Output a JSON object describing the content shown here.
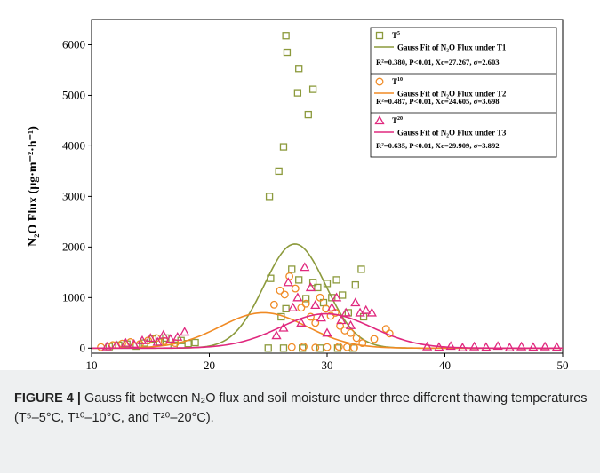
{
  "chart_data": {
    "type": "scatter",
    "xlabel": "Soil Moisture (%)",
    "ylabel": "N₂O Flux (µg·m⁻²·h⁻¹)",
    "xlim": [
      10,
      50
    ],
    "ylim": [
      -100,
      6500
    ],
    "xticks": [
      10,
      20,
      30,
      40,
      50
    ],
    "yticks": [
      0,
      1000,
      2000,
      3000,
      4000,
      5000,
      6000
    ],
    "colors": {
      "T5": "#8c9a3c",
      "T10": "#f08a24",
      "T20": "#e0287e"
    },
    "legend_placement": "top-right",
    "series": [
      {
        "name": "T5",
        "marker": "square",
        "fit_label": "Gauss  Fit of N₂O Flux under T1",
        "fit_stats": "R²=0.380,  P<0.01,  Xc=27.267,  σ=2.603",
        "fit": {
          "y0": 0,
          "xc": 27.267,
          "w": 5.206,
          "A": 13450
        },
        "points": [
          [
            11.5,
            30
          ],
          [
            12.3,
            60
          ],
          [
            13.0,
            80
          ],
          [
            13.8,
            40
          ],
          [
            14.5,
            100
          ],
          [
            15.2,
            180
          ],
          [
            15.8,
            120
          ],
          [
            16.3,
            200
          ],
          [
            17.0,
            60
          ],
          [
            17.6,
            150
          ],
          [
            18.2,
            90
          ],
          [
            18.8,
            110
          ],
          [
            25.1,
            3000
          ],
          [
            25.9,
            3500
          ],
          [
            26.3,
            3980
          ],
          [
            26.5,
            6180
          ],
          [
            26.6,
            5850
          ],
          [
            27.6,
            5530
          ],
          [
            27.5,
            5050
          ],
          [
            28.4,
            4620
          ],
          [
            28.8,
            5120
          ],
          [
            25.2,
            1380
          ],
          [
            26.1,
            620
          ],
          [
            26.5,
            780
          ],
          [
            27.0,
            1560
          ],
          [
            27.6,
            1350
          ],
          [
            28.2,
            980
          ],
          [
            28.8,
            1300
          ],
          [
            29.2,
            1200
          ],
          [
            29.7,
            900
          ],
          [
            30.0,
            1280
          ],
          [
            30.4,
            1000
          ],
          [
            30.8,
            1350
          ],
          [
            31.3,
            1050
          ],
          [
            31.8,
            700
          ],
          [
            32.4,
            1250
          ],
          [
            32.9,
            1560
          ],
          [
            33.1,
            620
          ],
          [
            26.3,
            0
          ],
          [
            27.9,
            0
          ],
          [
            29.4,
            0
          ],
          [
            30.9,
            0
          ],
          [
            32.2,
            0
          ],
          [
            25.0,
            0
          ]
        ]
      },
      {
        "name": "T10",
        "marker": "circle",
        "fit_label": "Gauss  Fit of N₂O Flux under T2",
        "fit_stats": "R²=0.487,  P<0.01,  Xc=24.605,  σ=3.698",
        "fit": {
          "y0": 0,
          "xc": 24.605,
          "w": 7.396,
          "A": 6490
        },
        "points": [
          [
            10.8,
            20
          ],
          [
            11.8,
            60
          ],
          [
            12.6,
            90
          ],
          [
            13.3,
            120
          ],
          [
            14.1,
            80
          ],
          [
            14.8,
            150
          ],
          [
            15.5,
            200
          ],
          [
            16.2,
            140
          ],
          [
            17.1,
            100
          ],
          [
            25.5,
            860
          ],
          [
            26.0,
            1140
          ],
          [
            26.4,
            1060
          ],
          [
            26.8,
            1420
          ],
          [
            27.3,
            1180
          ],
          [
            27.8,
            800
          ],
          [
            28.2,
            880
          ],
          [
            28.6,
            620
          ],
          [
            29.0,
            500
          ],
          [
            29.4,
            1000
          ],
          [
            29.9,
            780
          ],
          [
            30.3,
            640
          ],
          [
            30.7,
            700
          ],
          [
            31.1,
            440
          ],
          [
            31.5,
            350
          ],
          [
            32.0,
            300
          ],
          [
            32.5,
            200
          ],
          [
            33.0,
            100
          ],
          [
            34.0,
            180
          ],
          [
            35.0,
            380
          ],
          [
            35.3,
            290
          ],
          [
            27.0,
            20
          ],
          [
            28.0,
            30
          ],
          [
            29.0,
            10
          ],
          [
            30.0,
            20
          ],
          [
            31.0,
            30
          ],
          [
            31.7,
            20
          ],
          [
            32.3,
            10
          ]
        ]
      },
      {
        "name": "T20",
        "marker": "triangle",
        "fit_label": "Gauss  Fit of N₂O Flux under T3",
        "fit_stats": "R²=0.635,  P<0.01,  Xc=29.909,  σ=3.892",
        "fit": {
          "y0": 0,
          "xc": 29.909,
          "w": 7.784,
          "A": 6630
        },
        "points": [
          [
            11.3,
            30
          ],
          [
            12.1,
            60
          ],
          [
            12.9,
            100
          ],
          [
            13.6,
            80
          ],
          [
            14.3,
            150
          ],
          [
            15.0,
            200
          ],
          [
            15.6,
            120
          ],
          [
            16.1,
            260
          ],
          [
            16.7,
            180
          ],
          [
            17.3,
            220
          ],
          [
            17.9,
            320
          ],
          [
            25.7,
            250
          ],
          [
            26.3,
            400
          ],
          [
            26.7,
            1300
          ],
          [
            27.1,
            800
          ],
          [
            27.5,
            1000
          ],
          [
            27.8,
            500
          ],
          [
            28.1,
            1600
          ],
          [
            28.6,
            1200
          ],
          [
            29.0,
            850
          ],
          [
            29.5,
            600
          ],
          [
            30.0,
            300
          ],
          [
            30.4,
            800
          ],
          [
            30.8,
            1000
          ],
          [
            31.2,
            550
          ],
          [
            31.6,
            700
          ],
          [
            32.0,
            450
          ],
          [
            32.4,
            900
          ],
          [
            32.8,
            700
          ],
          [
            33.3,
            750
          ],
          [
            33.8,
            700
          ],
          [
            38.5,
            30
          ],
          [
            39.5,
            20
          ],
          [
            40.5,
            40
          ],
          [
            41.5,
            10
          ],
          [
            42.5,
            30
          ],
          [
            43.5,
            20
          ],
          [
            44.5,
            40
          ],
          [
            45.5,
            10
          ],
          [
            46.5,
            30
          ],
          [
            47.5,
            20
          ],
          [
            48.5,
            30
          ],
          [
            49.5,
            20
          ]
        ]
      }
    ]
  },
  "caption": {
    "label": "FIGURE 4 |",
    "text": " Gauss fit between N₂O flux and soil moisture under three different thawing temperatures (T⁵–5°C, T¹⁰–10°C, and T²⁰–20°C)."
  }
}
